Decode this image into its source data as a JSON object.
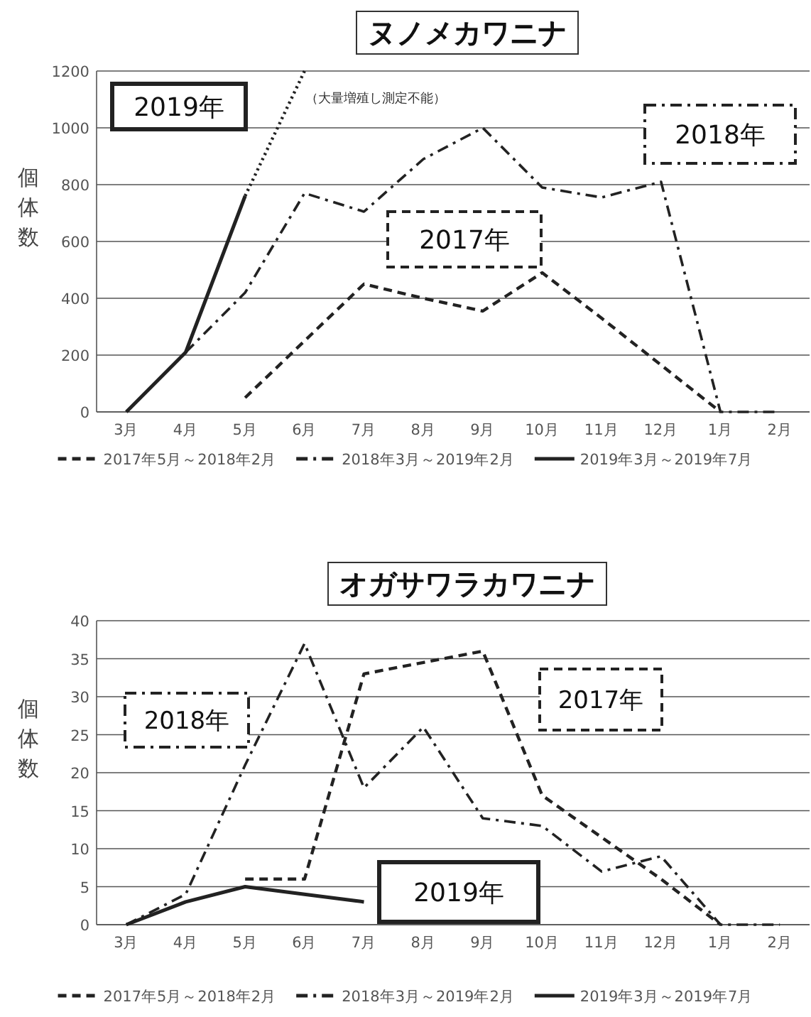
{
  "chart_data": [
    {
      "type": "line",
      "title": "ヌノメカワニナ",
      "ylabel": "個体数",
      "categories": [
        "3月",
        "4月",
        "5月",
        "6月",
        "7月",
        "8月",
        "9月",
        "10月",
        "11月",
        "12月",
        "1月",
        "2月"
      ],
      "series": [
        {
          "name": "2017年5月～2018年2月",
          "color": "#222222",
          "line_style": "dashed",
          "values": [
            null,
            null,
            50,
            250,
            450,
            400,
            355,
            490,
            330,
            165,
            0,
            null
          ]
        },
        {
          "name": "2018年3月～2019年2月",
          "color": "#222222",
          "line_style": "dashdot",
          "values": [
            null,
            210,
            420,
            770,
            705,
            890,
            1000,
            790,
            755,
            810,
            0,
            0
          ]
        },
        {
          "name": "2019年3月～2019年7月",
          "color": "#222222",
          "line_style": "solid",
          "values": [
            0,
            210,
            760,
            null,
            null,
            null,
            null,
            null,
            null,
            null,
            null,
            null
          ]
        },
        {
          "color": "#222222",
          "line_style": "dotted",
          "values": [
            null,
            null,
            760,
            1200,
            null,
            null,
            null,
            null,
            null,
            null,
            null,
            null
          ]
        }
      ],
      "ylim": [
        0,
        1200
      ],
      "yticks": [
        0,
        200,
        400,
        600,
        800,
        1000,
        1200
      ],
      "grid": "y",
      "legend": "bottom",
      "annotations": [
        "2019年",
        "（大量増殖し測定不能）",
        "2018年",
        "2017年"
      ]
    },
    {
      "type": "line",
      "title": "オガサワラカワニナ",
      "ylabel": "個体数",
      "categories": [
        "3月",
        "4月",
        "5月",
        "6月",
        "7月",
        "8月",
        "9月",
        "10月",
        "11月",
        "12月",
        "1月",
        "2月"
      ],
      "series": [
        {
          "name": "2017年5月～2018年2月",
          "color": "#222222",
          "line_style": "dashed",
          "values": [
            null,
            null,
            6,
            6,
            33,
            34.5,
            36,
            17,
            11.5,
            6,
            0,
            null
          ]
        },
        {
          "name": "2018年3月～2019年2月",
          "color": "#222222",
          "line_style": "dashdot",
          "values": [
            0,
            4,
            21,
            37,
            18,
            26,
            14,
            13,
            7,
            9,
            0,
            0
          ]
        },
        {
          "name": "2019年3月～2019年7月",
          "color": "#222222",
          "line_style": "solid",
          "values": [
            0,
            3,
            5,
            4,
            3,
            null,
            null,
            null,
            null,
            null,
            null,
            null
          ]
        }
      ],
      "ylim": [
        0,
        40
      ],
      "yticks": [
        0,
        5,
        10,
        15,
        20,
        25,
        30,
        35,
        40
      ],
      "grid": "y",
      "legend": "bottom",
      "annotations": [
        "2018年",
        "2017年",
        "2019年"
      ]
    }
  ]
}
